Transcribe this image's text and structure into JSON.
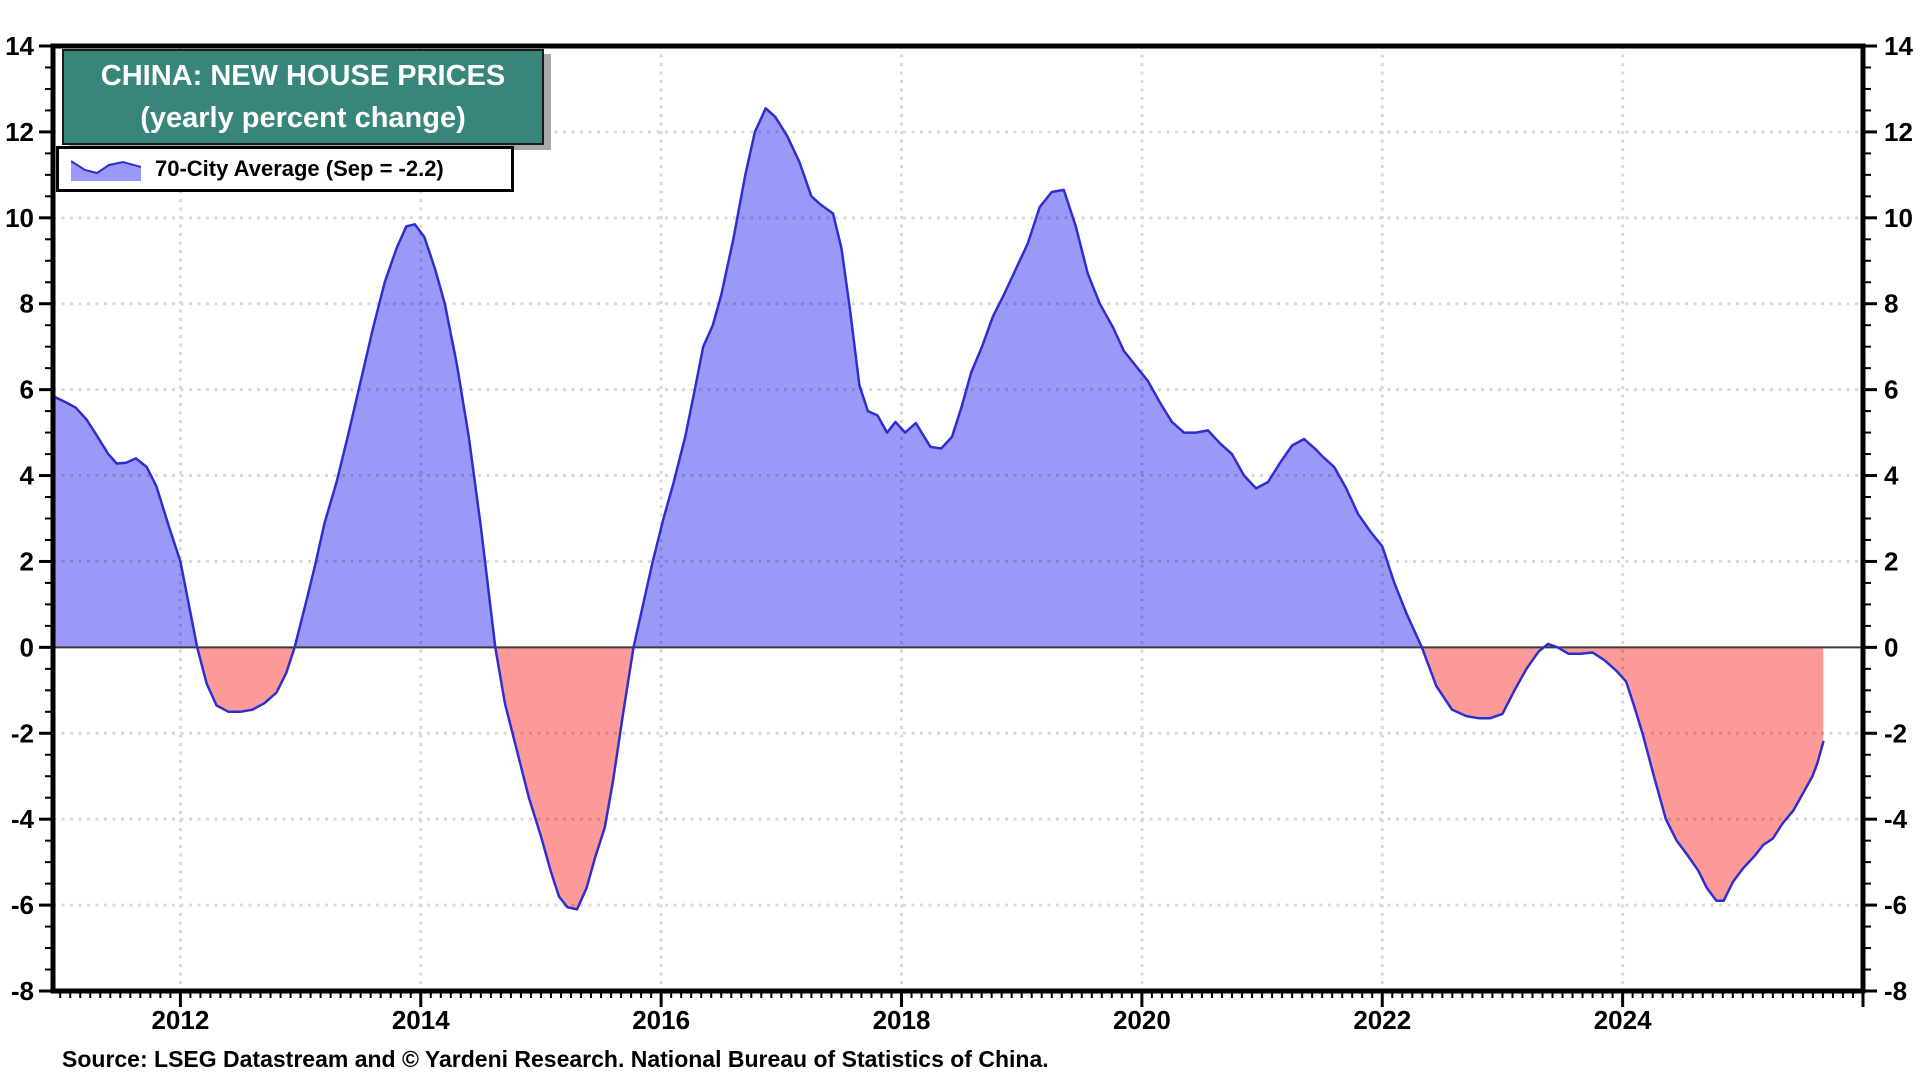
{
  "title": {
    "line1": "CHINA: NEW HOUSE PRICES",
    "line2": "(yearly percent change)"
  },
  "legend": {
    "label": "70-City Average (Sep = -2.2)"
  },
  "source": "Source: LSEG Datastream and © Yardeni Research. National Bureau of Statistics of China.",
  "colors": {
    "title_bg": "#38867b",
    "fill_positive": "#9a99f8",
    "fill_negative": "#fc9a9a",
    "line": "#2e2ed0",
    "gridline": "#d9d9d9",
    "zero_line": "#3a3a3a",
    "frame": "#000000"
  },
  "chart_data": {
    "type": "area",
    "title": "CHINA: NEW HOUSE PRICES (yearly percent change)",
    "series_name": "70-City Average",
    "latest_label": "Sep = -2.2",
    "xlabel": "",
    "ylabel": "yearly percent change",
    "xlim": [
      2010.94,
      2026.0
    ],
    "ylim": [
      -8,
      14
    ],
    "grid": "dotted, at even values and even years",
    "legend_position": "top-left",
    "x_label_ticks": [
      2012,
      2014,
      2016,
      2018,
      2020,
      2022,
      2024
    ],
    "yticks": [
      -8,
      -6,
      -4,
      -2,
      0,
      2,
      4,
      6,
      8,
      10,
      12,
      14
    ],
    "points": [
      [
        2010.94,
        5.85
      ],
      [
        2011.05,
        5.7
      ],
      [
        2011.13,
        5.58
      ],
      [
        2011.22,
        5.3
      ],
      [
        2011.3,
        4.95
      ],
      [
        2011.4,
        4.5
      ],
      [
        2011.47,
        4.28
      ],
      [
        2011.55,
        4.3
      ],
      [
        2011.63,
        4.4
      ],
      [
        2011.72,
        4.2
      ],
      [
        2011.8,
        3.75
      ],
      [
        2011.9,
        2.85
      ],
      [
        2012.0,
        2.0
      ],
      [
        2012.07,
        1.0
      ],
      [
        2012.14,
        0.0
      ],
      [
        2012.22,
        -0.85
      ],
      [
        2012.3,
        -1.35
      ],
      [
        2012.4,
        -1.5
      ],
      [
        2012.5,
        -1.5
      ],
      [
        2012.6,
        -1.45
      ],
      [
        2012.7,
        -1.3
      ],
      [
        2012.8,
        -1.05
      ],
      [
        2012.88,
        -0.6
      ],
      [
        2012.95,
        0.0
      ],
      [
        2013.05,
        1.1
      ],
      [
        2013.12,
        1.9
      ],
      [
        2013.2,
        2.9
      ],
      [
        2013.3,
        3.85
      ],
      [
        2013.4,
        5.0
      ],
      [
        2013.5,
        6.2
      ],
      [
        2013.6,
        7.4
      ],
      [
        2013.7,
        8.5
      ],
      [
        2013.8,
        9.3
      ],
      [
        2013.88,
        9.8
      ],
      [
        2013.95,
        9.85
      ],
      [
        2014.03,
        9.55
      ],
      [
        2014.12,
        8.8
      ],
      [
        2014.2,
        8.0
      ],
      [
        2014.3,
        6.6
      ],
      [
        2014.4,
        4.9
      ],
      [
        2014.5,
        2.8
      ],
      [
        2014.56,
        1.4
      ],
      [
        2014.62,
        0.0
      ],
      [
        2014.7,
        -1.3
      ],
      [
        2014.8,
        -2.4
      ],
      [
        2014.9,
        -3.5
      ],
      [
        2015.0,
        -4.4
      ],
      [
        2015.08,
        -5.2
      ],
      [
        2015.15,
        -5.8
      ],
      [
        2015.22,
        -6.05
      ],
      [
        2015.3,
        -6.1
      ],
      [
        2015.38,
        -5.6
      ],
      [
        2015.45,
        -4.9
      ],
      [
        2015.53,
        -4.2
      ],
      [
        2015.6,
        -3.1
      ],
      [
        2015.68,
        -1.6
      ],
      [
        2015.77,
        0.0
      ],
      [
        2015.85,
        1.0
      ],
      [
        2015.93,
        2.0
      ],
      [
        2016.02,
        3.0
      ],
      [
        2016.1,
        3.8
      ],
      [
        2016.2,
        4.9
      ],
      [
        2016.28,
        6.0
      ],
      [
        2016.35,
        7.0
      ],
      [
        2016.43,
        7.5
      ],
      [
        2016.5,
        8.2
      ],
      [
        2016.6,
        9.5
      ],
      [
        2016.7,
        11.0
      ],
      [
        2016.78,
        12.0
      ],
      [
        2016.87,
        12.55
      ],
      [
        2016.95,
        12.35
      ],
      [
        2017.05,
        11.9
      ],
      [
        2017.15,
        11.3
      ],
      [
        2017.25,
        10.5
      ],
      [
        2017.33,
        10.3
      ],
      [
        2017.43,
        10.1
      ],
      [
        2017.5,
        9.3
      ],
      [
        2017.57,
        7.9
      ],
      [
        2017.65,
        6.1
      ],
      [
        2017.72,
        5.5
      ],
      [
        2017.8,
        5.4
      ],
      [
        2017.88,
        5.0
      ],
      [
        2017.95,
        5.25
      ],
      [
        2018.03,
        5.0
      ],
      [
        2018.12,
        5.22
      ],
      [
        2018.24,
        4.67
      ],
      [
        2018.33,
        4.63
      ],
      [
        2018.42,
        4.9
      ],
      [
        2018.5,
        5.6
      ],
      [
        2018.58,
        6.4
      ],
      [
        2018.67,
        7.0
      ],
      [
        2018.76,
        7.7
      ],
      [
        2018.85,
        8.2
      ],
      [
        2018.95,
        8.8
      ],
      [
        2019.05,
        9.4
      ],
      [
        2019.15,
        10.25
      ],
      [
        2019.25,
        10.6
      ],
      [
        2019.35,
        10.65
      ],
      [
        2019.45,
        9.8
      ],
      [
        2019.55,
        8.7
      ],
      [
        2019.65,
        8.0
      ],
      [
        2019.76,
        7.45
      ],
      [
        2019.85,
        6.9
      ],
      [
        2019.95,
        6.55
      ],
      [
        2020.05,
        6.2
      ],
      [
        2020.15,
        5.7
      ],
      [
        2020.25,
        5.25
      ],
      [
        2020.35,
        5.0
      ],
      [
        2020.45,
        5.0
      ],
      [
        2020.55,
        5.05
      ],
      [
        2020.65,
        4.75
      ],
      [
        2020.75,
        4.5
      ],
      [
        2020.85,
        4.0
      ],
      [
        2020.95,
        3.7
      ],
      [
        2021.05,
        3.85
      ],
      [
        2021.15,
        4.3
      ],
      [
        2021.25,
        4.7
      ],
      [
        2021.35,
        4.85
      ],
      [
        2021.45,
        4.6
      ],
      [
        2021.5,
        4.45
      ],
      [
        2021.6,
        4.2
      ],
      [
        2021.7,
        3.7
      ],
      [
        2021.8,
        3.1
      ],
      [
        2021.9,
        2.7
      ],
      [
        2022.0,
        2.35
      ],
      [
        2022.1,
        1.5
      ],
      [
        2022.2,
        0.8
      ],
      [
        2022.33,
        0.0
      ],
      [
        2022.45,
        -0.9
      ],
      [
        2022.58,
        -1.45
      ],
      [
        2022.7,
        -1.6
      ],
      [
        2022.8,
        -1.65
      ],
      [
        2022.9,
        -1.65
      ],
      [
        2023.0,
        -1.55
      ],
      [
        2023.1,
        -1.0
      ],
      [
        2023.2,
        -0.5
      ],
      [
        2023.3,
        -0.1
      ],
      [
        2023.38,
        0.08
      ],
      [
        2023.46,
        0.0
      ],
      [
        2023.55,
        -0.15
      ],
      [
        2023.65,
        -0.15
      ],
      [
        2023.75,
        -0.12
      ],
      [
        2023.85,
        -0.3
      ],
      [
        2023.95,
        -0.55
      ],
      [
        2024.03,
        -0.8
      ],
      [
        2024.1,
        -1.4
      ],
      [
        2024.17,
        -2.05
      ],
      [
        2024.26,
        -3.0
      ],
      [
        2024.36,
        -4.0
      ],
      [
        2024.45,
        -4.5
      ],
      [
        2024.53,
        -4.8
      ],
      [
        2024.63,
        -5.2
      ],
      [
        2024.7,
        -5.6
      ],
      [
        2024.78,
        -5.9
      ],
      [
        2024.84,
        -5.9
      ],
      [
        2024.92,
        -5.45
      ],
      [
        2025.0,
        -5.15
      ],
      [
        2025.1,
        -4.85
      ],
      [
        2025.17,
        -4.6
      ],
      [
        2025.25,
        -4.45
      ],
      [
        2025.33,
        -4.1
      ],
      [
        2025.42,
        -3.8
      ],
      [
        2025.5,
        -3.4
      ],
      [
        2025.58,
        -3.0
      ],
      [
        2025.62,
        -2.7
      ],
      [
        2025.67,
        -2.2
      ]
    ]
  }
}
